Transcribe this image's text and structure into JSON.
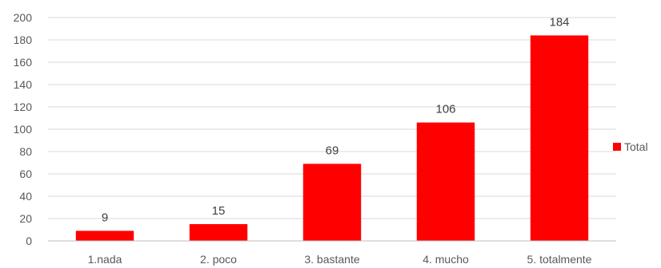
{
  "chart_data": {
    "type": "bar",
    "categories": [
      "1.nada",
      "2. poco",
      "3. bastante",
      "4. mucho",
      "5. totalmente"
    ],
    "series": [
      {
        "name": "Total",
        "values": [
          9,
          15,
          69,
          106,
          184
        ]
      }
    ],
    "ylim": [
      0,
      200
    ],
    "yticks": [
      0,
      20,
      40,
      60,
      80,
      100,
      120,
      140,
      160,
      180,
      200
    ],
    "grid": true,
    "legend_position": "right",
    "colors": {
      "bar": "#ff0000",
      "grid": "#d9d9d9",
      "axis": "#bfbfbf"
    }
  }
}
